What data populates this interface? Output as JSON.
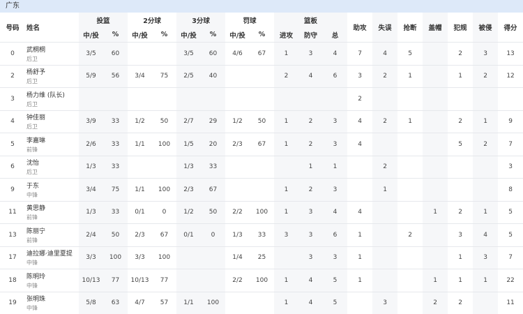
{
  "team": "广东",
  "header": {
    "columns": [
      "号码",
      "姓名",
      "投篮",
      "2分球",
      "3分球",
      "罚球",
      "篮板",
      "助攻",
      "失误",
      "抢断",
      "盖帽",
      "犯规",
      "被侵",
      "得分"
    ],
    "sub": [
      "中/投",
      "%",
      "中/投",
      "%",
      "中/投",
      "%",
      "中/投",
      "%",
      "进攻",
      "防守",
      "总"
    ]
  },
  "rows": [
    {
      "number": "0",
      "name": "武桐桐",
      "position": "后卫",
      "stats": [
        "3/5",
        "60",
        null,
        null,
        "3/5",
        "60",
        "4/6",
        "67",
        "1",
        "3",
        "4",
        "7",
        "4",
        "5",
        null,
        "2",
        "3",
        "13"
      ]
    },
    {
      "number": "2",
      "name": "杨舒予",
      "position": "后卫",
      "stats": [
        "5/9",
        "56",
        "3/4",
        "75",
        "2/5",
        "40",
        null,
        null,
        "2",
        "4",
        "6",
        "3",
        "2",
        "1",
        null,
        "1",
        "2",
        "12"
      ]
    },
    {
      "number": "3",
      "name": "杨力维 (队长)",
      "position": "后卫",
      "stats": [
        null,
        null,
        null,
        null,
        null,
        null,
        null,
        null,
        null,
        null,
        null,
        "2",
        null,
        null,
        null,
        null,
        null,
        null
      ]
    },
    {
      "number": "4",
      "name": "钟佳丽",
      "position": "后卫",
      "stats": [
        "3/9",
        "33",
        "1/2",
        "50",
        "2/7",
        "29",
        "1/2",
        "50",
        "1",
        "2",
        "3",
        "4",
        "2",
        "1",
        null,
        "2",
        "1",
        "9"
      ]
    },
    {
      "number": "5",
      "name": "李嘉琳",
      "position": "前锋",
      "stats": [
        "2/6",
        "33",
        "1/1",
        "100",
        "1/5",
        "20",
        "2/3",
        "67",
        "1",
        "2",
        "3",
        "4",
        null,
        null,
        null,
        "5",
        "2",
        "7"
      ]
    },
    {
      "number": "6",
      "name": "沈怡",
      "position": "后卫",
      "stats": [
        "1/3",
        "33",
        null,
        null,
        "1/3",
        "33",
        null,
        null,
        null,
        "1",
        "1",
        null,
        "2",
        null,
        null,
        null,
        null,
        "3"
      ]
    },
    {
      "number": "9",
      "name": "于东",
      "position": "中锋",
      "stats": [
        "3/4",
        "75",
        "1/1",
        "100",
        "2/3",
        "67",
        null,
        null,
        "1",
        "2",
        "3",
        null,
        "1",
        null,
        null,
        null,
        null,
        "8"
      ]
    },
    {
      "number": "11",
      "name": "黄思静",
      "position": "前锋",
      "stats": [
        "1/3",
        "33",
        "0/1",
        "0",
        "1/2",
        "50",
        "2/2",
        "100",
        "1",
        "3",
        "4",
        "4",
        null,
        null,
        "1",
        "2",
        "1",
        "5"
      ]
    },
    {
      "number": "13",
      "name": "陈丽宁",
      "position": "前锋",
      "stats": [
        "2/4",
        "50",
        "2/3",
        "67",
        "0/1",
        "0",
        "1/3",
        "33",
        "3",
        "3",
        "6",
        "1",
        null,
        "2",
        null,
        "3",
        "4",
        "5"
      ]
    },
    {
      "number": "17",
      "name": "迪拉娜·迪里夏提",
      "position": "中锋",
      "stats": [
        "3/3",
        "100",
        "3/3",
        "100",
        null,
        null,
        "1/4",
        "25",
        null,
        "3",
        "3",
        "1",
        null,
        null,
        null,
        "1",
        "3",
        "7"
      ]
    },
    {
      "number": "18",
      "name": "陈明玲",
      "position": "中锋",
      "stats": [
        "10/13",
        "77",
        "10/13",
        "77",
        null,
        null,
        "2/2",
        "100",
        "1",
        "4",
        "5",
        "1",
        null,
        null,
        "1",
        "1",
        "1",
        "22"
      ]
    },
    {
      "number": "19",
      "name": "张明珠",
      "position": "中锋",
      "stats": [
        "5/8",
        "63",
        "4/7",
        "57",
        "1/1",
        "100",
        null,
        null,
        "1",
        "4",
        "5",
        null,
        "3",
        null,
        "2",
        "2",
        null,
        "11"
      ]
    }
  ]
}
